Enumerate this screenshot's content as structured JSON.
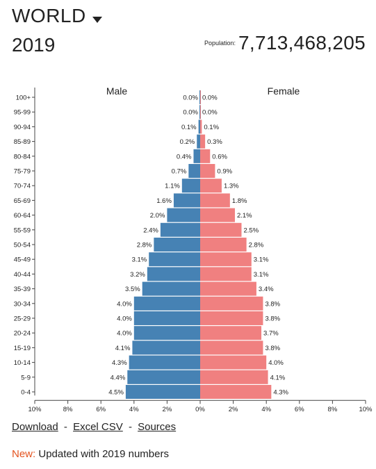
{
  "header": {
    "region": "WORLD",
    "year": "2019",
    "population_label": "Population:",
    "population_value": "7,713,468,205"
  },
  "icons": {
    "region_dropdown": "triangle-down"
  },
  "colors": {
    "male": "#4682b4",
    "female": "#f08080",
    "accent_new": "#e4531f"
  },
  "chart_data": {
    "type": "bar",
    "orientation": "horizontal-population-pyramid",
    "categories": [
      "100+",
      "95-99",
      "90-94",
      "85-89",
      "80-84",
      "75-79",
      "70-74",
      "65-69",
      "60-64",
      "55-59",
      "50-54",
      "45-49",
      "40-44",
      "35-39",
      "30-34",
      "25-29",
      "20-24",
      "15-19",
      "10-14",
      "5-9",
      "0-4"
    ],
    "series": [
      {
        "name": "Male",
        "values": [
          0.0,
          0.0,
          0.1,
          0.2,
          0.4,
          0.7,
          1.1,
          1.6,
          2.0,
          2.4,
          2.8,
          3.1,
          3.2,
          3.5,
          4.0,
          4.0,
          4.0,
          4.1,
          4.3,
          4.4,
          4.5
        ],
        "labels": [
          "0.0%",
          "0.0%",
          "0.1%",
          "0.2%",
          "0.4%",
          "0.7%",
          "1.1%",
          "1.6%",
          "2.0%",
          "2.4%",
          "2.8%",
          "3.1%",
          "3.2%",
          "3.5%",
          "4.0%",
          "4.0%",
          "4.0%",
          "4.1%",
          "4.3%",
          "4.4%",
          "4.5%"
        ]
      },
      {
        "name": "Female",
        "values": [
          0.0,
          0.0,
          0.1,
          0.3,
          0.6,
          0.9,
          1.3,
          1.8,
          2.1,
          2.5,
          2.8,
          3.1,
          3.1,
          3.4,
          3.8,
          3.8,
          3.7,
          3.8,
          4.0,
          4.1,
          4.3
        ],
        "labels": [
          "0.0%",
          "0.0%",
          "0.1%",
          "0.3%",
          "0.6%",
          "0.9%",
          "1.3%",
          "1.8%",
          "2.1%",
          "2.5%",
          "2.8%",
          "3.1%",
          "3.1%",
          "3.4%",
          "3.8%",
          "3.8%",
          "3.7%",
          "3.8%",
          "4.0%",
          "4.1%",
          "4.3%"
        ]
      }
    ],
    "xlim": [
      -10,
      10
    ],
    "x_ticks": [
      "10%",
      "8%",
      "6%",
      "4%",
      "2%",
      "0%",
      "2%",
      "4%",
      "6%",
      "8%",
      "10%"
    ],
    "grid": false
  },
  "footer": {
    "download": "Download",
    "sep1": "-",
    "excel_csv": "Excel CSV",
    "sep2": "-",
    "sources": "Sources",
    "new_label": "New:",
    "update_text": "Updated with 2019 numbers"
  }
}
